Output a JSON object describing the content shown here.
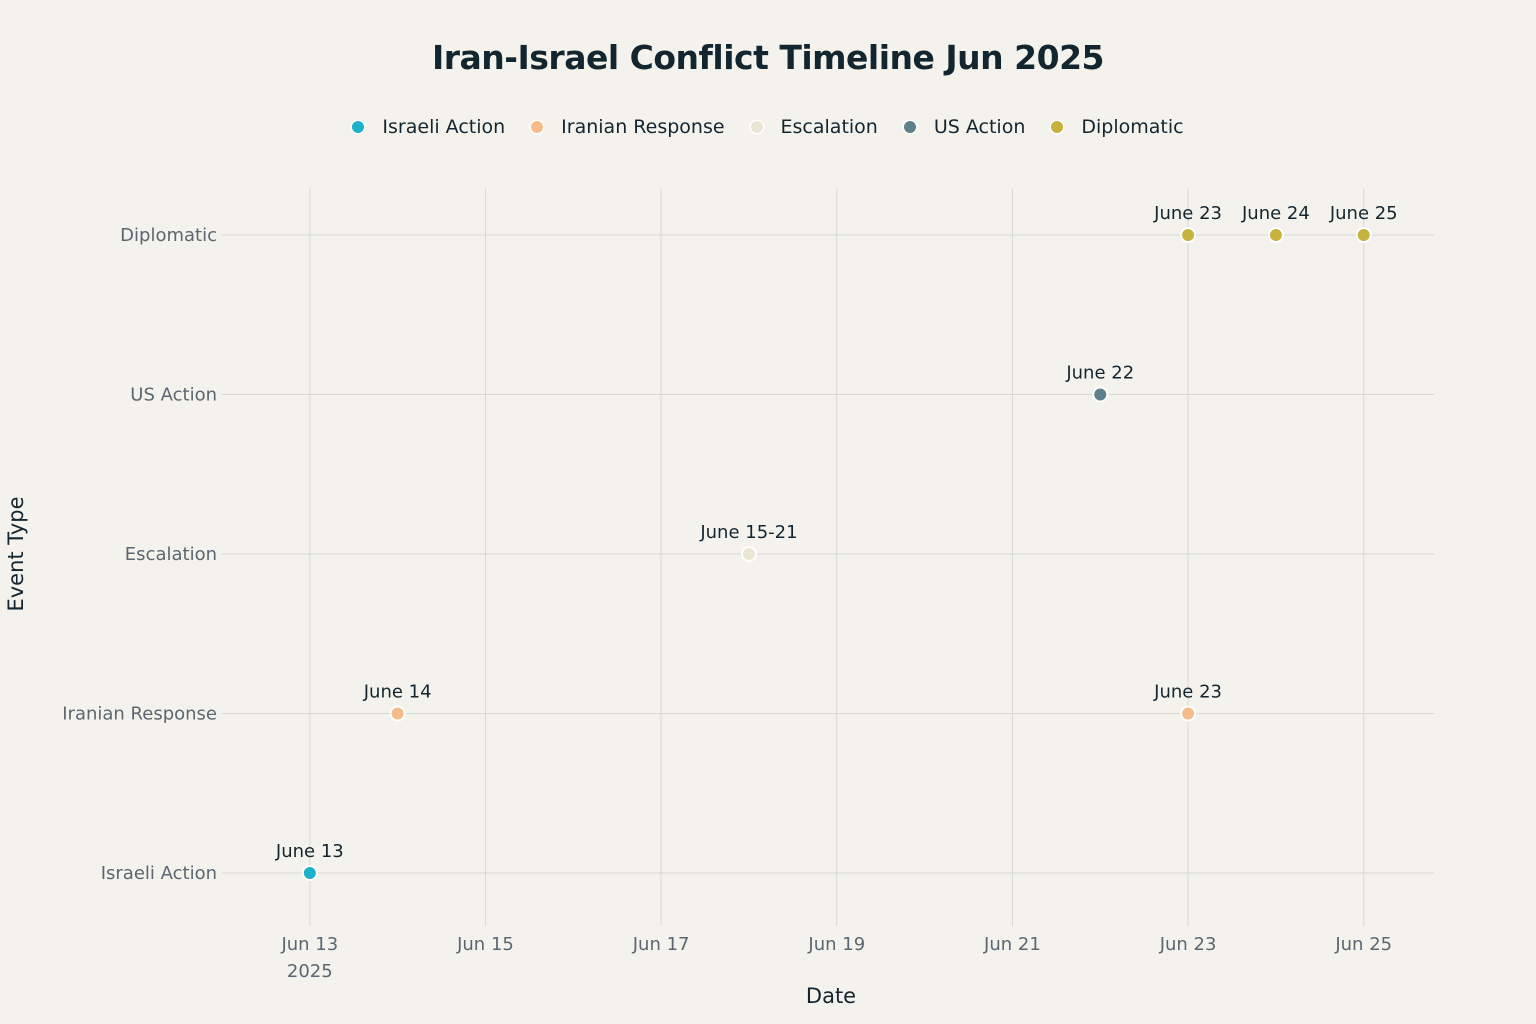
{
  "chart_data": {
    "type": "scatter",
    "title": "Iran-Israel Conflict Timeline Jun 2025",
    "xlabel": "Date",
    "ylabel": "Event Type",
    "x_axis": {
      "type": "date",
      "range": [
        "2025-06-12",
        "2025-06-25.8"
      ],
      "ticks": [
        {
          "value": "2025-06-13",
          "label": "Jun 13",
          "sublabel": "2025"
        },
        {
          "value": "2025-06-15",
          "label": "Jun 15"
        },
        {
          "value": "2025-06-17",
          "label": "Jun 17"
        },
        {
          "value": "2025-06-19",
          "label": "Jun 19"
        },
        {
          "value": "2025-06-21",
          "label": "Jun 21"
        },
        {
          "value": "2025-06-23",
          "label": "Jun 23"
        },
        {
          "value": "2025-06-25",
          "label": "Jun 25"
        }
      ]
    },
    "categories": [
      "Israeli Action",
      "Iranian Response",
      "Escalation",
      "US Action",
      "Diplomatic"
    ],
    "grid": true,
    "legend_position": "top-center",
    "series": [
      {
        "name": "Israeli Action",
        "color": "#1fb1c9",
        "points": [
          {
            "x": "2025-06-13",
            "y": "Israeli Action",
            "label": "June 13"
          }
        ]
      },
      {
        "name": "Iranian Response",
        "color": "#f4bc8a",
        "points": [
          {
            "x": "2025-06-14",
            "y": "Iranian Response",
            "label": "June 14"
          },
          {
            "x": "2025-06-23",
            "y": "Iranian Response",
            "label": "June 23"
          }
        ]
      },
      {
        "name": "Escalation",
        "color": "#e9e6d3",
        "points": [
          {
            "x": "2025-06-18",
            "y": "Escalation",
            "label": "June 15-21"
          }
        ]
      },
      {
        "name": "US Action",
        "color": "#5f7f8b",
        "points": [
          {
            "x": "2025-06-22",
            "y": "US Action",
            "label": "June 22"
          }
        ]
      },
      {
        "name": "Diplomatic",
        "color": "#c8b23e",
        "points": [
          {
            "x": "2025-06-23",
            "y": "Diplomatic",
            "label": "June 23"
          },
          {
            "x": "2025-06-24",
            "y": "Diplomatic",
            "label": "June 24"
          },
          {
            "x": "2025-06-25",
            "y": "Diplomatic",
            "label": "June 25"
          }
        ]
      }
    ]
  }
}
